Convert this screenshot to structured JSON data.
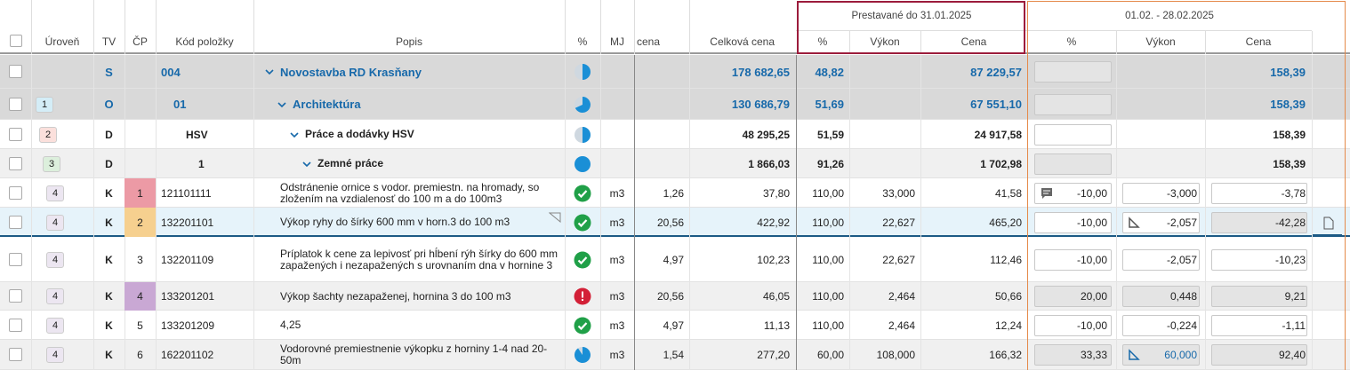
{
  "header": {
    "columns": [
      "Úroveň",
      "TV",
      "ČP",
      "Kód položky",
      "Popis",
      "%",
      "MJ",
      "cena",
      "Celková cena"
    ],
    "groups": [
      {
        "title": "Prestavané do 31.01.2025",
        "columns": [
          "%",
          "Výkon",
          "Cena"
        ]
      },
      {
        "title": "01.02. - 28.02.2025",
        "columns": [
          "%",
          "Výkon",
          "Cena"
        ]
      }
    ]
  },
  "rows": [
    {
      "tv": "S",
      "code": "004",
      "description": "Novostavba RD Krasňany",
      "total": "178 682,65",
      "done": {
        "pct": "48,82",
        "price": "87 229,57"
      },
      "current": {
        "price": "158,39"
      }
    },
    {
      "level": "1",
      "tv": "O",
      "code": "01",
      "description": "Architektúra",
      "total": "130 686,79",
      "done": {
        "pct": "51,69",
        "price": "67 551,10"
      },
      "current": {
        "price": "158,39"
      }
    },
    {
      "level": "2",
      "tv": "D",
      "code": "HSV",
      "description": "Práce a dodávky HSV",
      "total": "48 295,25",
      "done": {
        "pct": "51,59",
        "price": "24 917,58"
      },
      "current": {
        "price": "158,39"
      }
    },
    {
      "level": "3",
      "tv": "D",
      "code": "1",
      "description": "Zemné práce",
      "total": "1 866,03",
      "done": {
        "pct": "91,26",
        "price": "1 702,98"
      },
      "current": {
        "price": "158,39"
      }
    },
    {
      "level": "4",
      "tv": "K",
      "cp": "1",
      "code": "121101111",
      "description": "Odstránenie ornice s vodor. premiestn. na hromady, so zložením na vzdialenosť do 100 m a do 100m3",
      "unit": "m3",
      "unit_price": "1,26",
      "total": "37,80",
      "done": {
        "pct": "110,00",
        "qty": "33,000",
        "price": "41,58"
      },
      "current": {
        "pct": "-10,00",
        "qty": "-3,000",
        "price": "-3,78"
      }
    },
    {
      "level": "4",
      "tv": "K",
      "cp": "2",
      "code": "132201101",
      "description": "Výkop ryhy do šírky 600 mm v horn.3 do 100 m3",
      "unit": "m3",
      "unit_price": "20,56",
      "total": "422,92",
      "done": {
        "pct": "110,00",
        "qty": "22,627",
        "price": "465,20"
      },
      "current": {
        "pct": "-10,00",
        "qty": "-2,057",
        "price": "-42,28"
      }
    },
    {
      "level": "4",
      "tv": "K",
      "cp": "3",
      "code": "132201109",
      "description": "Príplatok k cene za lepivosť pri hĺbení rýh šírky do 600 mm zapažených i nezapažených s urovnaním dna v hornine 3",
      "unit": "m3",
      "unit_price": "4,97",
      "total": "102,23",
      "done": {
        "pct": "110,00",
        "qty": "22,627",
        "price": "112,46"
      },
      "current": {
        "pct": "-10,00",
        "qty": "-2,057",
        "price": "-10,23"
      }
    },
    {
      "level": "4",
      "tv": "K",
      "cp": "4",
      "code": "133201201",
      "description": "Výkop šachty nezapaženej, hornina 3 do 100 m3",
      "unit": "m3",
      "unit_price": "20,56",
      "total": "46,05",
      "done": {
        "pct": "110,00",
        "qty": "2,464",
        "price": "50,66"
      },
      "current": {
        "pct": "20,00",
        "qty": "0,448",
        "price": "9,21"
      }
    },
    {
      "level": "4",
      "tv": "K",
      "cp": "5",
      "code": "133201209",
      "description": "4,25",
      "unit": "m3",
      "unit_price": "4,97",
      "total": "11,13",
      "done": {
        "pct": "110,00",
        "qty": "2,464",
        "price": "12,24"
      },
      "current": {
        "pct": "-10,00",
        "qty": "-0,224",
        "price": "-1,11"
      }
    },
    {
      "level": "4",
      "tv": "K",
      "cp": "6",
      "code": "162201102",
      "description": "Vodorovné premiestnenie výkopku z horniny 1-4 nad 20-50m",
      "unit": "m3",
      "unit_price": "1,54",
      "total": "277,20",
      "done": {
        "pct": "60,00",
        "qty": "108,000",
        "price": "166,32"
      },
      "current": {
        "pct": "33,33",
        "qty": "60,000",
        "price": "92,40"
      }
    }
  ]
}
